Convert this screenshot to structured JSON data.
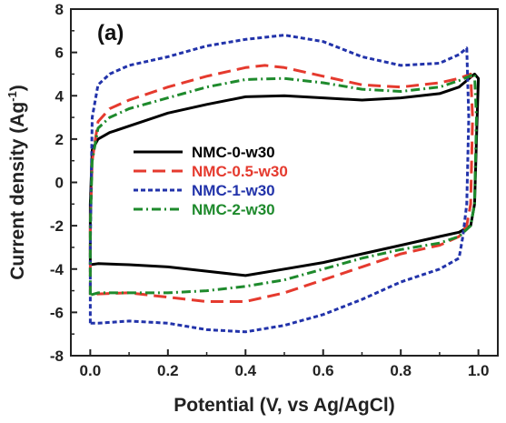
{
  "chart_data": {
    "type": "line",
    "panel_label": "(a)",
    "xlabel": "Potential (V, vs Ag/AgCl)",
    "ylabel_main": "Current density (Ag",
    "ylabel_sup": "-1",
    "ylabel_close": ")",
    "xlim": [
      -0.05,
      1.05
    ],
    "ylim": [
      -8,
      8
    ],
    "xticks": [
      0.0,
      0.2,
      0.4,
      0.6,
      0.8,
      1.0
    ],
    "xtick_labels": [
      "0.0",
      "0.2",
      "0.4",
      "0.6",
      "0.8",
      "1.0"
    ],
    "yticks": [
      -8,
      -6,
      -4,
      -2,
      0,
      2,
      4,
      6,
      8
    ],
    "ytick_labels": [
      "-8",
      "-6",
      "-4",
      "-2",
      "0",
      "2",
      "4",
      "6",
      "8"
    ],
    "grid": false,
    "legend_position": "center-left",
    "series": [
      {
        "name": "NMC-0-w30",
        "color": "#000000",
        "dash": "solid",
        "points": [
          [
            0.0,
            -3.8
          ],
          [
            0.0,
            -1.0
          ],
          [
            0.005,
            1.5
          ],
          [
            0.02,
            2.0
          ],
          [
            0.05,
            2.3
          ],
          [
            0.1,
            2.6
          ],
          [
            0.2,
            3.2
          ],
          [
            0.3,
            3.6
          ],
          [
            0.4,
            3.95
          ],
          [
            0.5,
            4.0
          ],
          [
            0.6,
            3.9
          ],
          [
            0.7,
            3.8
          ],
          [
            0.8,
            3.9
          ],
          [
            0.9,
            4.1
          ],
          [
            0.95,
            4.4
          ],
          [
            0.99,
            5.0
          ],
          [
            1.0,
            4.8
          ],
          [
            0.995,
            2.0
          ],
          [
            0.99,
            -1.0
          ],
          [
            0.98,
            -2.0
          ],
          [
            0.95,
            -2.3
          ],
          [
            0.9,
            -2.5
          ],
          [
            0.8,
            -2.9
          ],
          [
            0.7,
            -3.3
          ],
          [
            0.6,
            -3.7
          ],
          [
            0.5,
            -4.0
          ],
          [
            0.4,
            -4.3
          ],
          [
            0.3,
            -4.1
          ],
          [
            0.2,
            -3.9
          ],
          [
            0.1,
            -3.8
          ],
          [
            0.02,
            -3.75
          ],
          [
            0.0,
            -3.8
          ]
        ]
      },
      {
        "name": "NMC-0.5-w30",
        "color": "#e53a2e",
        "dash": "long-dash",
        "points": [
          [
            0.0,
            -5.2
          ],
          [
            0.0,
            -2.0
          ],
          [
            0.005,
            1.0
          ],
          [
            0.02,
            2.8
          ],
          [
            0.05,
            3.4
          ],
          [
            0.1,
            3.8
          ],
          [
            0.2,
            4.4
          ],
          [
            0.3,
            4.9
          ],
          [
            0.4,
            5.3
          ],
          [
            0.45,
            5.4
          ],
          [
            0.5,
            5.3
          ],
          [
            0.6,
            4.9
          ],
          [
            0.7,
            4.5
          ],
          [
            0.8,
            4.4
          ],
          [
            0.9,
            4.6
          ],
          [
            0.95,
            4.8
          ],
          [
            0.98,
            5.0
          ],
          [
            0.985,
            3.0
          ],
          [
            0.98,
            -1.0
          ],
          [
            0.97,
            -2.0
          ],
          [
            0.95,
            -2.5
          ],
          [
            0.9,
            -2.9
          ],
          [
            0.8,
            -3.3
          ],
          [
            0.7,
            -3.9
          ],
          [
            0.6,
            -4.5
          ],
          [
            0.5,
            -5.1
          ],
          [
            0.4,
            -5.5
          ],
          [
            0.3,
            -5.5
          ],
          [
            0.2,
            -5.3
          ],
          [
            0.1,
            -5.1
          ],
          [
            0.02,
            -5.15
          ],
          [
            0.0,
            -5.2
          ]
        ]
      },
      {
        "name": "NMC-1-w30",
        "color": "#2233aa",
        "dash": "short-dash",
        "points": [
          [
            0.0,
            -6.5
          ],
          [
            0.0,
            -3.0
          ],
          [
            0.005,
            3.0
          ],
          [
            0.02,
            4.5
          ],
          [
            0.05,
            5.0
          ],
          [
            0.1,
            5.4
          ],
          [
            0.2,
            5.8
          ],
          [
            0.3,
            6.3
          ],
          [
            0.4,
            6.6
          ],
          [
            0.5,
            6.8
          ],
          [
            0.6,
            6.5
          ],
          [
            0.7,
            5.8
          ],
          [
            0.8,
            5.4
          ],
          [
            0.9,
            5.5
          ],
          [
            0.95,
            5.9
          ],
          [
            0.97,
            6.2
          ],
          [
            0.975,
            3.0
          ],
          [
            0.97,
            -1.0
          ],
          [
            0.96,
            -2.5
          ],
          [
            0.95,
            -3.5
          ],
          [
            0.9,
            -4.0
          ],
          [
            0.8,
            -4.6
          ],
          [
            0.7,
            -5.4
          ],
          [
            0.6,
            -6.1
          ],
          [
            0.5,
            -6.6
          ],
          [
            0.4,
            -6.9
          ],
          [
            0.3,
            -6.8
          ],
          [
            0.2,
            -6.5
          ],
          [
            0.1,
            -6.4
          ],
          [
            0.02,
            -6.5
          ],
          [
            0.0,
            -6.5
          ]
        ]
      },
      {
        "name": "NMC-2-w30",
        "color": "#1e8a2c",
        "dash": "dash-dot",
        "points": [
          [
            0.0,
            -5.2
          ],
          [
            0.0,
            -2.0
          ],
          [
            0.005,
            1.0
          ],
          [
            0.02,
            2.5
          ],
          [
            0.05,
            3.0
          ],
          [
            0.1,
            3.4
          ],
          [
            0.2,
            3.9
          ],
          [
            0.3,
            4.4
          ],
          [
            0.4,
            4.75
          ],
          [
            0.5,
            4.8
          ],
          [
            0.6,
            4.6
          ],
          [
            0.7,
            4.3
          ],
          [
            0.8,
            4.2
          ],
          [
            0.9,
            4.4
          ],
          [
            0.95,
            4.7
          ],
          [
            0.99,
            5.0
          ],
          [
            0.995,
            3.0
          ],
          [
            0.99,
            -1.0
          ],
          [
            0.98,
            -2.0
          ],
          [
            0.95,
            -2.5
          ],
          [
            0.9,
            -2.8
          ],
          [
            0.8,
            -3.1
          ],
          [
            0.7,
            -3.5
          ],
          [
            0.6,
            -4.0
          ],
          [
            0.5,
            -4.5
          ],
          [
            0.4,
            -4.8
          ],
          [
            0.3,
            -5.0
          ],
          [
            0.2,
            -5.1
          ],
          [
            0.1,
            -5.1
          ],
          [
            0.02,
            -5.1
          ],
          [
            0.0,
            -5.2
          ]
        ]
      }
    ]
  }
}
